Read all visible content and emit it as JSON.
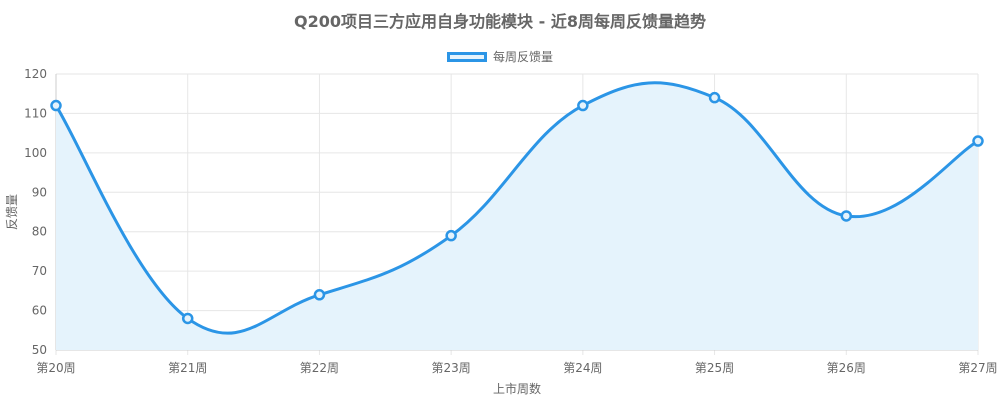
{
  "chart_data": {
    "type": "line",
    "title": "Q200项目三方应用自身功能模块 - 近8周每周反馈量趋势",
    "xlabel": "上市周数",
    "ylabel": "反馈量",
    "categories": [
      "第20周",
      "第21周",
      "第22周",
      "第23周",
      "第24周",
      "第25周",
      "第26周",
      "第27周"
    ],
    "series": [
      {
        "name": "每周反馈量",
        "values": [
          112,
          58,
          64,
          79,
          112,
          114,
          84,
          103
        ]
      }
    ],
    "ylim": [
      50,
      120
    ],
    "yticks": [
      50,
      60,
      70,
      80,
      90,
      100,
      110,
      120
    ],
    "grid": true,
    "legend": "top-center",
    "fill": true,
    "colors": {
      "line": "#2b95e6",
      "fill": "#e5f3fc",
      "grid": "#e6e6e6",
      "text": "#666666"
    }
  }
}
